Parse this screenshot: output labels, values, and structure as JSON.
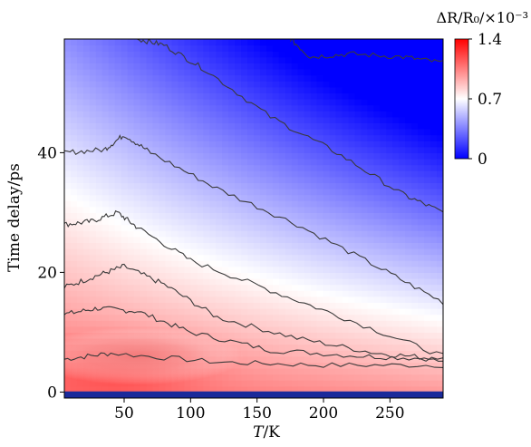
{
  "chart_data": {
    "type": "heatmap",
    "title": "",
    "xlabel_italic": "T",
    "xlabel_rest": "/K",
    "ylabel": "Time delay/ps",
    "xlim": [
      5,
      290
    ],
    "ylim": [
      -1,
      59
    ],
    "x_ticks": [
      50,
      100,
      150,
      200,
      250
    ],
    "y_ticks": [
      0,
      20,
      40
    ],
    "colorbar": {
      "title": "ΔR/R₀/×10⁻³",
      "range": [
        0,
        1.4
      ],
      "ticks": [
        0,
        0.7,
        1.4
      ],
      "colormap": "bwr",
      "color_low": "#0000ff",
      "color_mid": "#ffffff",
      "color_high": "#ff0000"
    },
    "peak": {
      "x": 50,
      "y": 4.5,
      "value": 1.2
    },
    "contour_lines": [
      {
        "level": "c1",
        "x": [
          5,
          40,
          120,
          200,
          290
        ],
        "y": [
          5.5,
          6.5,
          5.0,
          4.5,
          4.5
        ]
      },
      {
        "level": "c2",
        "x": [
          5,
          30,
          60,
          100,
          160,
          230,
          290
        ],
        "y": [
          13,
          14,
          13.5,
          10,
          7,
          6,
          5.5
        ]
      },
      {
        "level": "c3",
        "x": [
          5,
          30,
          50,
          80,
          120,
          180,
          240,
          290
        ],
        "y": [
          17.5,
          19.5,
          21,
          18,
          12.5,
          9,
          6.5,
          5.5
        ]
      },
      {
        "level": "c4",
        "x": [
          5,
          25,
          45,
          60,
          100,
          160,
          220,
          290
        ],
        "y": [
          28,
          28.5,
          30,
          27.5,
          22,
          17,
          12,
          6
        ]
      },
      {
        "level": "c5",
        "x": [
          5,
          35,
          50,
          70,
          120,
          180,
          240,
          290
        ],
        "y": [
          40,
          40.5,
          43,
          40,
          34,
          28,
          21,
          15
        ]
      },
      {
        "level": "c6",
        "x": [
          60,
          80,
          110,
          160,
          210,
          260,
          290
        ],
        "y": [
          59,
          58,
          54,
          46,
          40,
          33,
          30
        ]
      },
      {
        "level": "c7",
        "x": [
          175,
          190,
          220,
          260,
          290
        ],
        "y": [
          59,
          56,
          56.5,
          56,
          55
        ]
      }
    ]
  }
}
